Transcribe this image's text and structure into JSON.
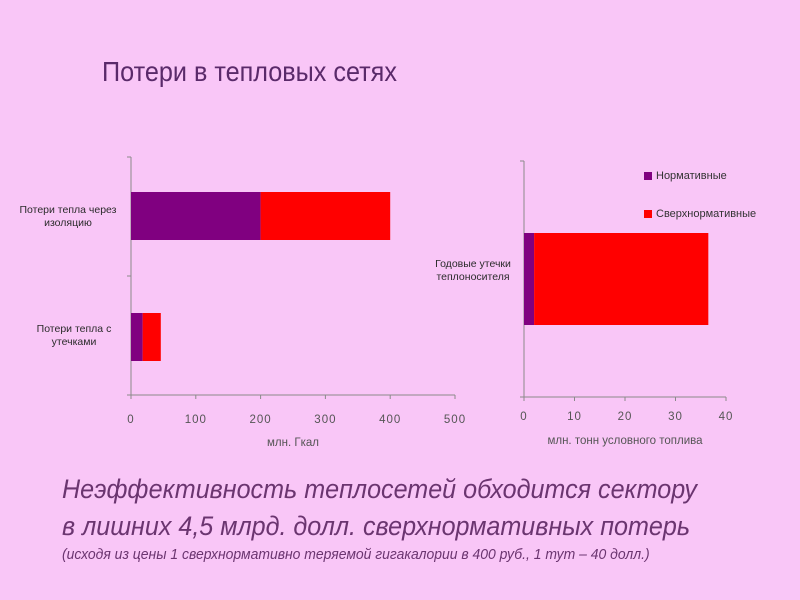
{
  "slide": {
    "title": "Потери в тепловых сетях",
    "line1": "Неэффективность теплосетей обходится сектору",
    "line2": "в лишних 4,5 млрд. долл. сверхнормативных потерь",
    "line3": "(исходя из цены 1 сверхнормативно теряемой гигакалории в 400 руб., 1 тут – 40 долл.)"
  },
  "colors": {
    "normative": "#800080",
    "excess": "#ff0000",
    "axis": "#8a8a8a",
    "axis_text": "#555555"
  },
  "legend": [
    "Нормативные",
    "Сверхнормативные"
  ],
  "chart_data": [
    {
      "type": "bar",
      "orientation": "horizontal",
      "stacked": true,
      "categories": [
        "Потери тепла через изоляцию",
        "Потери тепла с утечками"
      ],
      "series": [
        {
          "name": "Нормативные",
          "values": [
            200,
            18
          ]
        },
        {
          "name": "Сверхнормативные",
          "values": [
            200,
            28
          ]
        }
      ],
      "xlabel": "млн. Гкал",
      "xlim": [
        0,
        500
      ],
      "xticks": [
        "0",
        "100",
        "200",
        "300",
        "400",
        "500"
      ]
    },
    {
      "type": "bar",
      "orientation": "horizontal",
      "stacked": true,
      "categories": [
        "Годовые утечки теплоносителя"
      ],
      "series": [
        {
          "name": "Нормативные",
          "values": [
            2
          ]
        },
        {
          "name": "Сверхнормативные",
          "values": [
            34.5
          ]
        }
      ],
      "xlabel": "млн. тонн условного топлива",
      "xlim": [
        0,
        40
      ],
      "xticks": [
        "0",
        "10",
        "20",
        "30",
        "40"
      ]
    }
  ]
}
